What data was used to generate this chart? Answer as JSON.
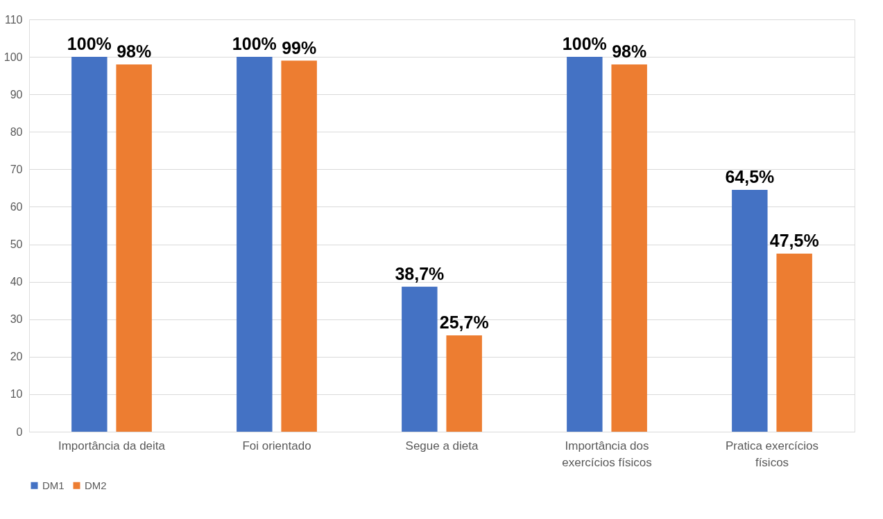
{
  "chart_data": {
    "type": "bar",
    "categories": [
      "Importância da deita",
      "Foi orientado",
      "Segue a dieta",
      "Importância dos exercícios físicos",
      "Pratica exercícios físicos"
    ],
    "series": [
      {
        "name": "DM1",
        "color": "#4472c4",
        "values": [
          100,
          100,
          38.7,
          100,
          64.5
        ],
        "value_labels": [
          "100%",
          "100%",
          "38,7%",
          "100%",
          "64,5%"
        ]
      },
      {
        "name": "DM2",
        "color": "#ed7d31",
        "values": [
          98,
          99,
          25.7,
          98,
          47.5
        ],
        "value_labels": [
          "98%",
          "99%",
          "25,7%",
          "98%",
          "47,5%"
        ]
      }
    ],
    "ylim": [
      0,
      110
    ],
    "yticks": [
      0,
      10,
      20,
      30,
      40,
      50,
      60,
      70,
      80,
      90,
      100,
      110
    ],
    "grid": "y",
    "legend": "bottom"
  }
}
